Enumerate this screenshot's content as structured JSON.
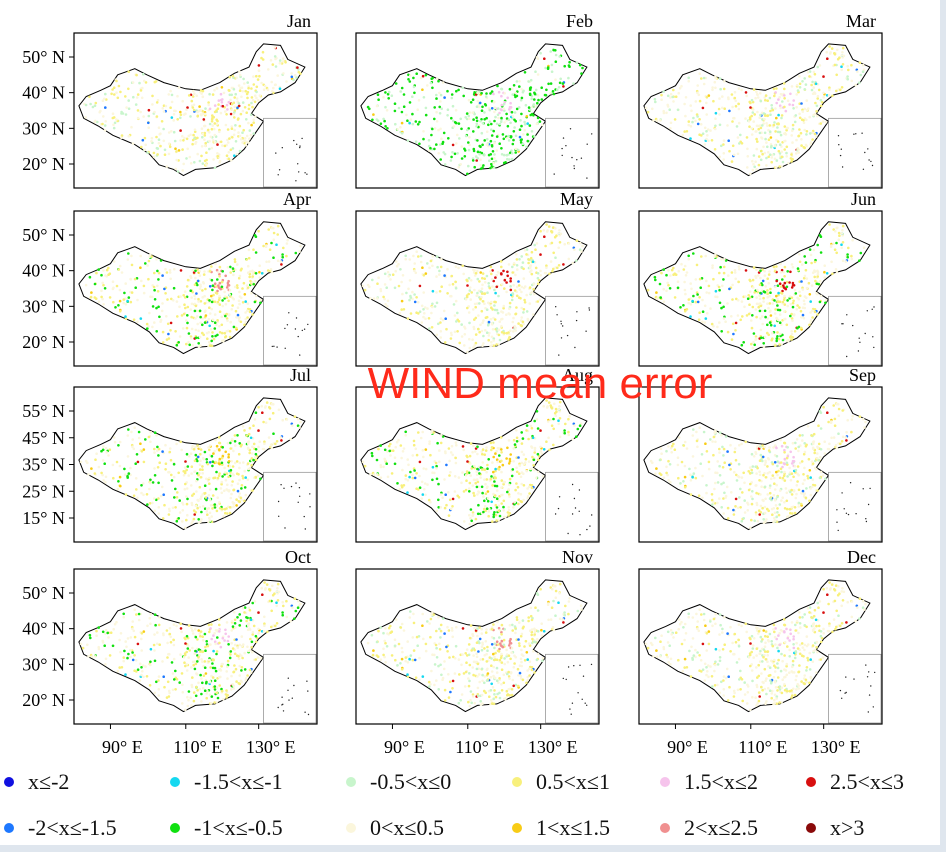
{
  "overlay_title": "WIND  mean error",
  "colors": {
    "overlay_title": "#ff2a1a"
  },
  "x_tick_labels": [
    "90° E",
    "110° E",
    "130° E"
  ],
  "legend": [
    {
      "label": "x≤-2",
      "color": "#1010e0"
    },
    {
      "label": "-2<x≤-1.5",
      "color": "#1e78ff"
    },
    {
      "label": "-1.5<x≤-1",
      "color": "#15d8f0"
    },
    {
      "label": "-1<x≤-0.5",
      "color": "#10e010"
    },
    {
      "label": "-0.5<x≤0",
      "color": "#c8f5cc"
    },
    {
      "label": "0<x≤0.5",
      "color": "#fbf6dc"
    },
    {
      "label": "0.5<x≤1",
      "color": "#f8f07c"
    },
    {
      "label": "1<x≤1.5",
      "color": "#f8cc16"
    },
    {
      "label": "1.5<x≤2",
      "color": "#f6c4ec"
    },
    {
      "label": "2<x≤2.5",
      "color": "#f09090"
    },
    {
      "label": "2.5<x≤3",
      "color": "#d80f0f"
    },
    {
      "label": "x>3",
      "color": "#8a0a0a"
    }
  ],
  "chart_data": {
    "type": "scatter",
    "description_note": "",
    "panels": [
      {
        "month": "Jan",
        "y_ticks": [
          "50° N",
          "40° N",
          "30° N",
          "20° N"
        ],
        "dominant": [
          "0<x≤0.5",
          "0.5<x≤1"
        ],
        "secondary": [
          "-0.5<x≤0"
        ],
        "hotspot": "1.5<x≤2"
      },
      {
        "month": "Feb",
        "y_ticks": [],
        "dominant": [
          "-1<x≤-0.5",
          "-0.5<x≤0"
        ],
        "secondary": [
          "0<x≤0.5"
        ],
        "hotspot": "1.5<x≤2"
      },
      {
        "month": "Mar",
        "y_ticks": [],
        "dominant": [
          "0<x≤0.5",
          "0.5<x≤1"
        ],
        "secondary": [
          "-0.5<x≤0"
        ],
        "hotspot": "1.5<x≤2"
      },
      {
        "month": "Apr",
        "y_ticks": [
          "50° N",
          "40° N",
          "30° N",
          "20° N"
        ],
        "dominant": [
          "0<x≤0.5",
          "0.5<x≤1"
        ],
        "secondary": [
          "-1<x≤-0.5"
        ],
        "hotspot": "2<x≤2.5"
      },
      {
        "month": "May",
        "y_ticks": [],
        "dominant": [
          "0<x≤0.5",
          "0.5<x≤1"
        ],
        "secondary": [
          "-0.5<x≤0"
        ],
        "hotspot": "2.5<x≤3"
      },
      {
        "month": "Jun",
        "y_ticks": [],
        "dominant": [
          "0<x≤0.5",
          "0.5<x≤1"
        ],
        "secondary": [
          "-1<x≤-0.5"
        ],
        "hotspot": "2.5<x≤3"
      },
      {
        "month": "Jul",
        "y_ticks": [
          "55° N",
          "45° N",
          "35° N",
          "25° N",
          "15° N"
        ],
        "dominant": [
          "0<x≤0.5",
          "0.5<x≤1"
        ],
        "secondary": [
          "-1<x≤-0.5"
        ],
        "hotspot": "1<x≤1.5"
      },
      {
        "month": "Aug",
        "y_ticks": [],
        "dominant": [
          "0<x≤0.5",
          "0.5<x≤1"
        ],
        "secondary": [
          "-1<x≤-0.5"
        ],
        "hotspot": "1<x≤1.5"
      },
      {
        "month": "Sep",
        "y_ticks": [],
        "dominant": [
          "0<x≤0.5",
          "0.5<x≤1"
        ],
        "secondary": [
          "-0.5<x≤0"
        ],
        "hotspot": "1.5<x≤2"
      },
      {
        "month": "Oct",
        "y_ticks": [
          "50° N",
          "40° N",
          "30° N",
          "20° N"
        ],
        "dominant": [
          "0<x≤0.5",
          "0.5<x≤1"
        ],
        "secondary": [
          "-1<x≤-0.5"
        ],
        "hotspot": "1.5<x≤2"
      },
      {
        "month": "Nov",
        "y_ticks": [],
        "dominant": [
          "0<x≤0.5",
          "0.5<x≤1"
        ],
        "secondary": [
          "-0.5<x≤0"
        ],
        "hotspot": "2<x≤2.5"
      },
      {
        "month": "Dec",
        "y_ticks": [],
        "dominant": [
          "0<x≤0.5",
          "0.5<x≤1"
        ],
        "secondary": [
          "-0.5<x≤0"
        ],
        "hotspot": "1.5<x≤2"
      }
    ]
  }
}
